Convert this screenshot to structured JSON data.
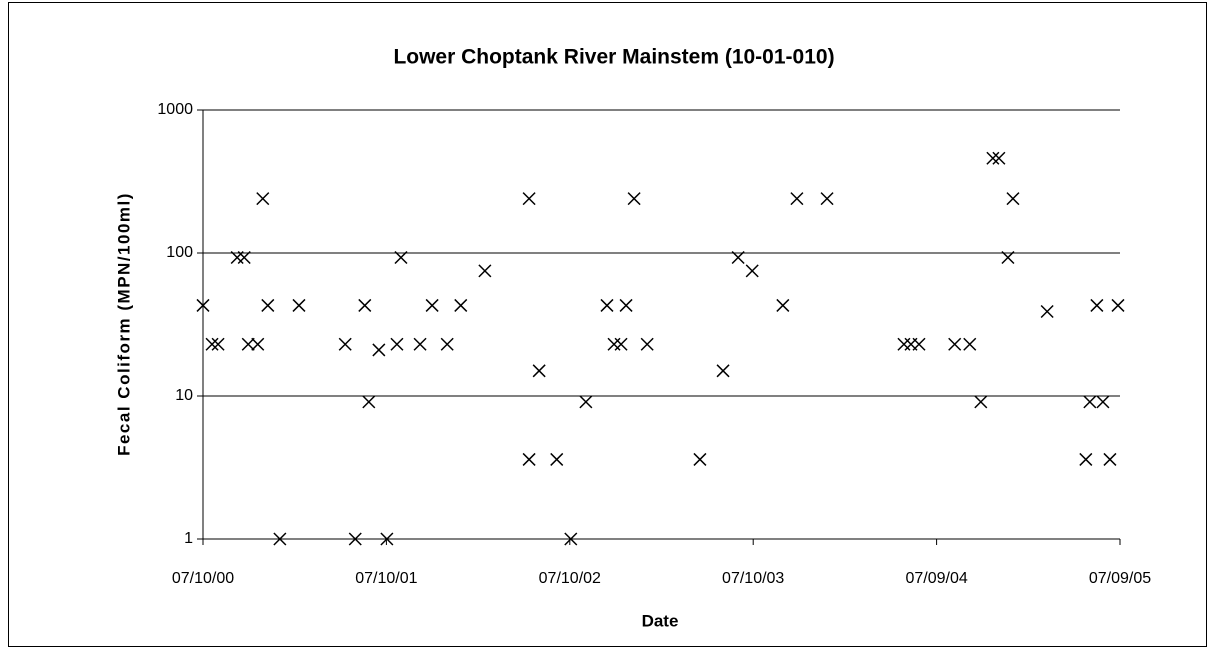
{
  "chart_data": {
    "type": "scatter",
    "title": "Lower Choptank River Mainstem (10-01-010)",
    "x_label": "Date",
    "y_label": "Fecal Coliform (MPN/100ml)",
    "color": "#000000",
    "marker": "x",
    "log_y": true,
    "grid": true,
    "xlim": [
      "2000-07-10",
      "2005-07-09"
    ],
    "xticks": [
      {
        "value": "2000-07-10",
        "label": "07/10/00"
      },
      {
        "value": "2001-07-10",
        "label": "07/10/01"
      },
      {
        "value": "2002-07-10",
        "label": "07/10/02"
      },
      {
        "value": "2003-07-10",
        "label": "07/10/03"
      },
      {
        "value": "2004-07-09",
        "label": "07/09/04"
      },
      {
        "value": "2005-07-09",
        "label": "07/09/05"
      }
    ],
    "ylim": [
      1,
      1000
    ],
    "yticks": [
      1,
      10,
      100,
      1000
    ],
    "x": [
      "2000-07-10",
      "2000-07-28",
      "2000-08-09",
      "2000-09-16",
      "2000-09-30",
      "2000-10-08",
      "2000-10-27",
      "2000-11-06",
      "2000-11-16",
      "2000-12-10",
      "2001-01-17",
      "2001-04-19",
      "2001-05-09",
      "2001-05-28",
      "2001-06-05",
      "2001-06-25",
      "2001-07-11",
      "2001-07-31",
      "2001-08-08",
      "2001-09-15",
      "2001-10-09",
      "2001-11-08",
      "2001-12-05",
      "2002-01-22",
      "2002-04-20",
      "2002-04-20",
      "2002-05-10",
      "2002-06-14",
      "2002-07-12",
      "2002-08-11",
      "2002-09-22",
      "2002-10-06",
      "2002-10-20",
      "2002-10-30",
      "2002-11-15",
      "2002-12-11",
      "2003-03-26",
      "2003-05-11",
      "2003-06-10",
      "2003-07-08",
      "2003-09-07",
      "2003-10-05",
      "2003-12-04",
      "2004-05-05",
      "2004-05-19",
      "2004-06-04",
      "2004-08-14",
      "2004-09-13",
      "2004-10-05",
      "2004-10-29",
      "2004-11-10",
      "2004-11-28",
      "2004-12-08",
      "2005-02-14",
      "2005-05-02",
      "2005-05-10",
      "2005-05-24",
      "2005-06-05",
      "2005-06-19",
      "2005-07-05"
    ],
    "values": [
      43,
      23,
      23,
      93,
      93,
      23,
      23,
      240,
      43,
      1,
      43,
      23,
      1,
      43,
      9.1,
      21,
      1,
      23,
      93,
      23,
      43,
      23,
      43,
      75,
      240,
      3.6,
      15,
      3.6,
      1,
      9.1,
      43,
      23,
      23,
      43,
      240,
      23,
      3.6,
      15,
      93,
      75,
      43,
      240,
      240,
      23,
      23,
      23,
      23,
      23,
      9.1,
      460,
      460,
      93,
      240,
      39,
      3.6,
      9.1,
      43,
      9.1,
      3.6,
      43
    ]
  }
}
